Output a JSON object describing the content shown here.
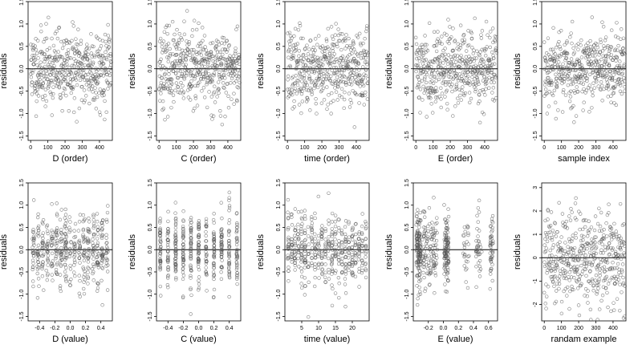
{
  "colors": {
    "points": "#555555",
    "axes": "#000000",
    "background": "#ffffff"
  },
  "chart_data": [
    {
      "type": "scatter",
      "xlabel": "D (order)",
      "ylabel": "residuals",
      "xlim": [
        -15,
        475
      ],
      "ylim": [
        -1.6,
        1.5
      ],
      "xticks": [
        0,
        100,
        200,
        300,
        400
      ],
      "yticks": [
        -1.5,
        -1.0,
        -0.5,
        0.0,
        0.5,
        1.0,
        1.5
      ],
      "ytick_labels": [
        "-1.5",
        "-1.0",
        "-0.5",
        "0.0",
        "0.5",
        "1.0",
        "1.5"
      ],
      "hline": 0,
      "n": 470,
      "generator": "order",
      "seed": 11,
      "sd": 0.42
    },
    {
      "type": "scatter",
      "xlabel": "C (order)",
      "ylabel": "residuals",
      "xlim": [
        -15,
        475
      ],
      "ylim": [
        -1.6,
        1.5
      ],
      "xticks": [
        0,
        100,
        200,
        300,
        400
      ],
      "yticks": [
        -1.5,
        -1.0,
        -0.5,
        0.0,
        0.5,
        1.0,
        1.5
      ],
      "ytick_labels": [
        "-1.5",
        "-1.0",
        "-0.5",
        "0.0",
        "0.5",
        "1.0",
        "1.5"
      ],
      "hline": 0,
      "n": 470,
      "generator": "order",
      "seed": 23,
      "sd": 0.42
    },
    {
      "type": "scatter",
      "xlabel": "time (order)",
      "ylabel": "residuals",
      "xlim": [
        -15,
        475
      ],
      "ylim": [
        -1.6,
        1.5
      ],
      "xticks": [
        0,
        100,
        200,
        300,
        400
      ],
      "yticks": [
        -1.5,
        -1.0,
        -0.5,
        0.0,
        0.5,
        1.0,
        1.5
      ],
      "ytick_labels": [
        "-1.5",
        "-1.0",
        "-0.5",
        "0.0",
        "0.5",
        "1.0",
        "1.5"
      ],
      "hline": 0,
      "n": 470,
      "generator": "order",
      "seed": 37,
      "sd": 0.42
    },
    {
      "type": "scatter",
      "xlabel": "E (order)",
      "ylabel": "residuals",
      "xlim": [
        -15,
        475
      ],
      "ylim": [
        -1.6,
        1.5
      ],
      "xticks": [
        0,
        100,
        200,
        300,
        400
      ],
      "yticks": [
        -1.5,
        -1.0,
        -0.5,
        0.0,
        0.5,
        1.0,
        1.5
      ],
      "ytick_labels": [
        "-1.5",
        "-1.0",
        "-0.5",
        "0.0",
        "0.5",
        "1.0",
        "1.5"
      ],
      "hline": 0,
      "n": 470,
      "generator": "order",
      "seed": 41,
      "sd": 0.42
    },
    {
      "type": "scatter",
      "xlabel": "sample index",
      "ylabel": "residuals",
      "xlim": [
        -15,
        475
      ],
      "ylim": [
        -1.6,
        1.5
      ],
      "xticks": [
        0,
        100,
        200,
        300,
        400
      ],
      "yticks": [
        -1.5,
        -1.0,
        -0.5,
        0.0,
        0.5,
        1.0,
        1.5
      ],
      "ytick_labels": [
        "-1.5",
        "-1.0",
        "-0.5",
        "0.0",
        "0.5",
        "1.0",
        "1.5"
      ],
      "hline": 0,
      "n": 470,
      "generator": "order",
      "seed": 53,
      "sd": 0.42
    },
    {
      "type": "scatter",
      "xlabel": "D (value)",
      "ylabel": "residuals",
      "xlim": [
        -0.55,
        0.55
      ],
      "ylim": [
        -1.6,
        1.5
      ],
      "xticks": [
        -0.4,
        -0.2,
        0.0,
        0.2,
        0.4
      ],
      "xtick_labels": [
        "-0.4",
        "-0.2",
        "0.0",
        "0.2",
        "0.4"
      ],
      "yticks": [
        -1.5,
        -1.0,
        -0.5,
        0.0,
        0.5,
        1.0,
        1.5
      ],
      "ytick_labels": [
        "-1.5",
        "-1.0",
        "-0.5",
        "0.0",
        "0.5",
        "1.0",
        "1.5"
      ],
      "hline": 0,
      "n": 470,
      "generator": "columns",
      "levels": [
        -0.48,
        -0.42,
        -0.36,
        -0.3,
        -0.24,
        -0.18,
        -0.12,
        -0.06,
        0.0,
        0.06,
        0.12,
        0.18,
        0.24,
        0.3,
        0.36,
        0.42,
        0.48
      ],
      "jitter": 0.012,
      "seed": 61,
      "sd": 0.42
    },
    {
      "type": "scatter",
      "xlabel": "C (value)",
      "ylabel": "residuals",
      "xlim": [
        -0.55,
        0.55
      ],
      "ylim": [
        -1.6,
        1.5
      ],
      "xticks": [
        -0.4,
        -0.2,
        0.0,
        0.2,
        0.4
      ],
      "xtick_labels": [
        "-0.4",
        "-0.2",
        "0.0",
        "0.2",
        "0.4"
      ],
      "yticks": [
        -1.5,
        -1.0,
        -0.5,
        0.0,
        0.5,
        1.0,
        1.5
      ],
      "ytick_labels": [
        "-1.5",
        "-1.0",
        "-0.5",
        "0.0",
        "0.5",
        "1.0",
        "1.5"
      ],
      "hline": 0,
      "n": 470,
      "generator": "columns",
      "levels": [
        -0.5,
        -0.4,
        -0.3,
        -0.2,
        -0.1,
        0.0,
        0.1,
        0.2,
        0.3,
        0.4,
        0.5
      ],
      "jitter": 0.006,
      "seed": 73,
      "sd": 0.42
    },
    {
      "type": "scatter",
      "xlabel": "time (value)",
      "ylabel": "residuals",
      "xlim": [
        0,
        25
      ],
      "ylim": [
        -1.6,
        1.5
      ],
      "xticks": [
        5,
        10,
        15,
        20
      ],
      "yticks": [
        -1.5,
        -1.0,
        -0.5,
        0.0,
        0.5,
        1.0,
        1.5
      ],
      "ytick_labels": [
        "-1.5",
        "-1.0",
        "-0.5",
        "0.0",
        "0.5",
        "1.0",
        "1.5"
      ],
      "hline": 0,
      "n": 470,
      "generator": "columns",
      "levels": [
        1,
        2,
        3,
        4,
        5,
        6,
        7,
        8,
        9,
        10,
        11,
        12,
        13,
        14,
        15,
        16,
        17,
        18,
        19,
        20,
        21,
        22,
        23,
        24
      ],
      "jitter": 0.15,
      "seed": 89,
      "sd": 0.42
    },
    {
      "type": "scatter",
      "xlabel": "E (value)",
      "ylabel": "residuals",
      "xlim": [
        -0.4,
        0.72
      ],
      "ylim": [
        -1.6,
        1.5
      ],
      "xticks": [
        -0.2,
        0.0,
        0.2,
        0.4,
        0.6
      ],
      "xtick_labels": [
        "-0.2",
        "0.0",
        "0.2",
        "0.4",
        "0.6"
      ],
      "yticks": [
        -1.5,
        -1.0,
        -0.5,
        0.0,
        0.5,
        1.0,
        1.5
      ],
      "ytick_labels": [
        "-1.5",
        "-1.0",
        "-0.5",
        "0.0",
        "0.5",
        "1.0",
        "1.5"
      ],
      "hline": 0,
      "n": 470,
      "generator": "clusters",
      "clusters": [
        {
          "center": -0.33,
          "width": 0.03,
          "weight": 0.3
        },
        {
          "center": -0.18,
          "width": 0.1,
          "weight": 0.26
        },
        {
          "center": 0.04,
          "width": 0.03,
          "weight": 0.24
        },
        {
          "center": 0.3,
          "width": 0.04,
          "weight": 0.06
        },
        {
          "center": 0.47,
          "width": 0.04,
          "weight": 0.06
        },
        {
          "center": 0.64,
          "width": 0.02,
          "weight": 0.08
        }
      ],
      "seed": 97,
      "sd": 0.42
    },
    {
      "type": "scatter",
      "xlabel": "randam example",
      "ylabel": "residuals",
      "xlim": [
        -15,
        475
      ],
      "ylim": [
        -2.7,
        3.2
      ],
      "xticks": [
        0,
        100,
        200,
        300,
        400
      ],
      "yticks": [
        -2,
        -1,
        0,
        1,
        2,
        3
      ],
      "ytick_labels": [
        "-2",
        "-1",
        "0",
        "1",
        "2",
        "3"
      ],
      "hline": 0,
      "n": 470,
      "generator": "order",
      "seed": 101,
      "sd": 1.0
    }
  ]
}
